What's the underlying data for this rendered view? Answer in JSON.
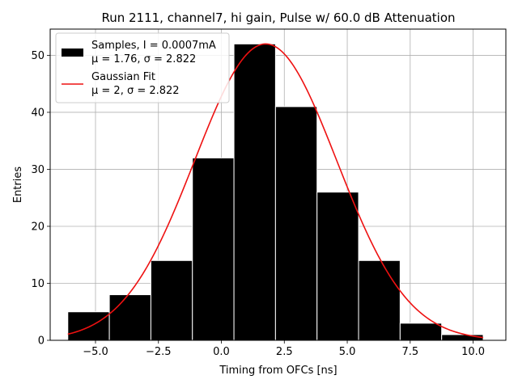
{
  "chart_data": {
    "type": "bar",
    "title": "Run 2111, channel7, hi gain, Pulse w/ 60.0 dB Attenuation",
    "xlabel": "Timing from OFCs [ns]",
    "ylabel": "Entries",
    "xlim": [
      -6.8,
      11.3
    ],
    "ylim": [
      0,
      54.6
    ],
    "x_ticks": [
      -5.0,
      -2.5,
      0.0,
      2.5,
      5.0,
      7.5,
      10.0
    ],
    "x_tick_labels": [
      "−5.0",
      "−2.5",
      "0.0",
      "2.5",
      "5.0",
      "7.5",
      "10.0"
    ],
    "y_ticks": [
      0,
      10,
      20,
      30,
      40,
      50
    ],
    "y_tick_labels": [
      "0",
      "10",
      "20",
      "30",
      "40",
      "50"
    ],
    "grid": true,
    "legend_position": "top-left",
    "bin_edges": [
      -6.1,
      -4.45,
      -2.8,
      -1.15,
      0.5,
      2.15,
      3.8,
      5.45,
      7.1,
      8.75,
      10.4
    ],
    "counts": [
      5,
      8,
      14,
      32,
      52,
      41,
      26,
      14,
      3,
      1
    ],
    "histogram_color": "#000000",
    "histogram_edge_color": "#ffffff",
    "fit": {
      "amplitude": 52,
      "mean": 1.76,
      "sigma": 2.822,
      "x_range": [
        -6.1,
        10.4
      ],
      "color": "#ee1111"
    },
    "legend": [
      {
        "label_line1": "Samples, I = 0.0007mA",
        "label_line2": "μ = 1.76, σ = 2.822"
      },
      {
        "label_line1": "Gaussian Fit",
        "label_line2": "μ = 2, σ = 2.822"
      }
    ]
  }
}
